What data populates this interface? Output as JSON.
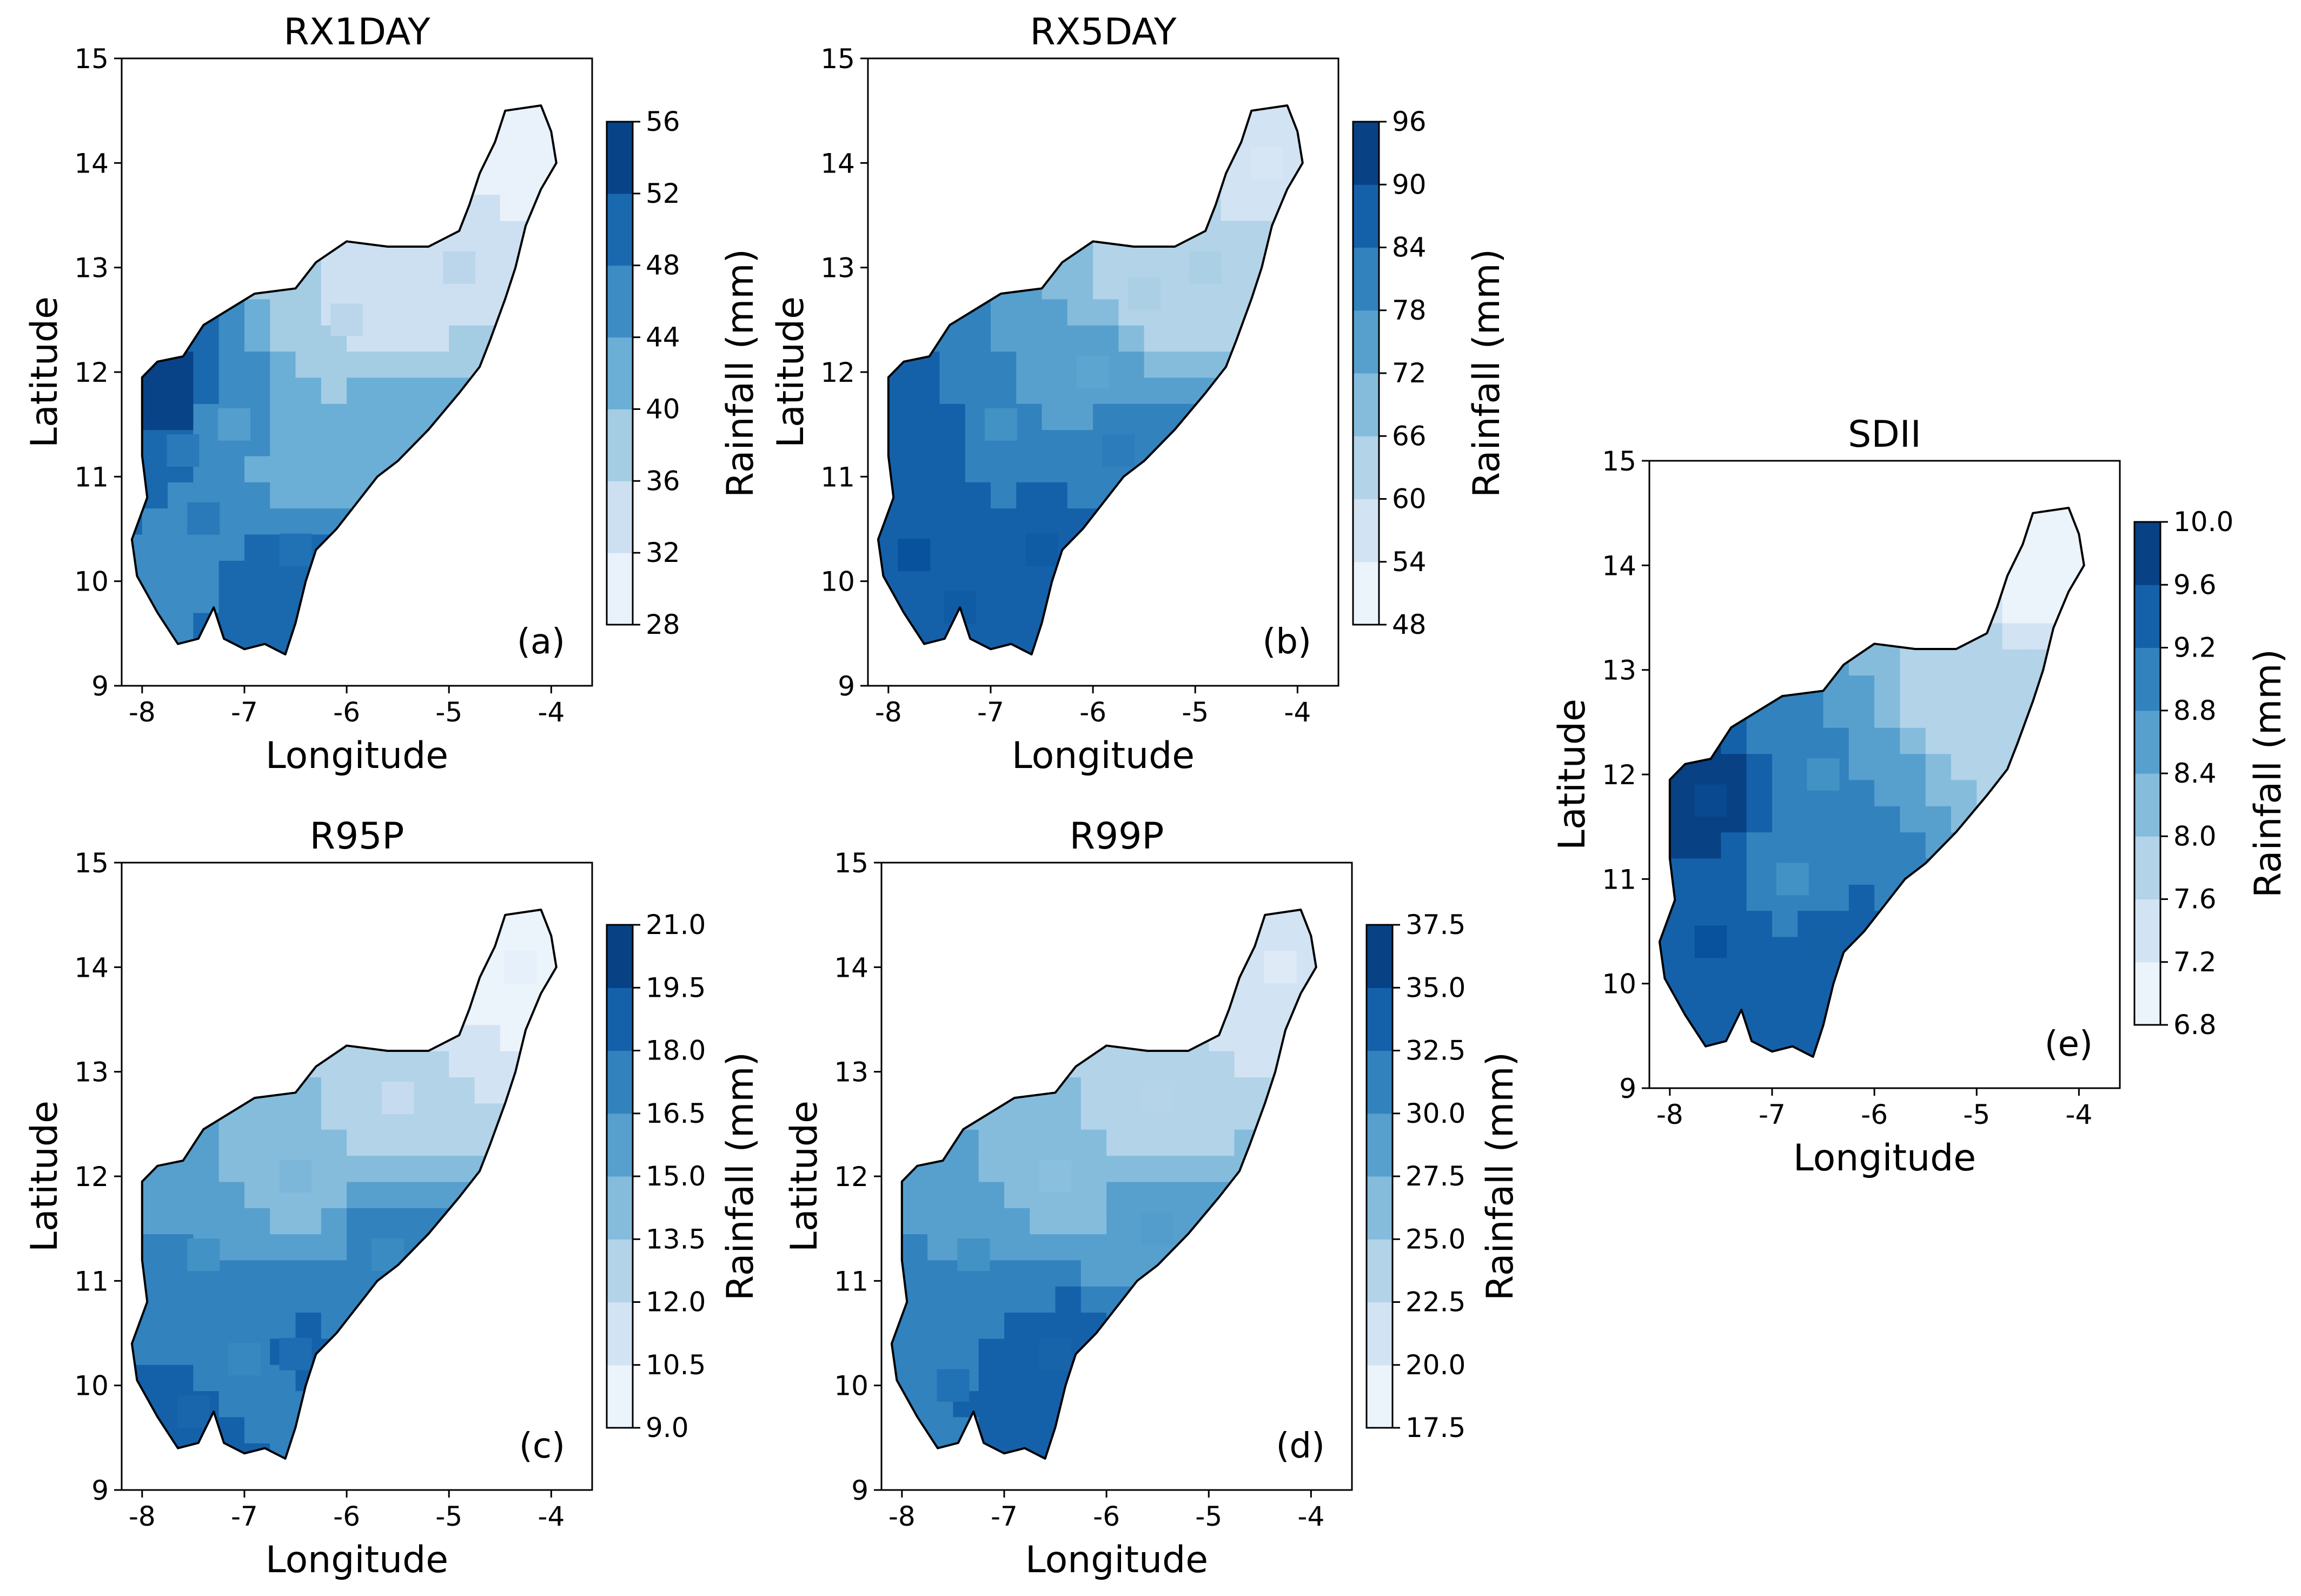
{
  "figure": {
    "colormap": "Blues"
  },
  "chart_data": [
    {
      "type": "heatmap",
      "panel": "(a)",
      "title": "RX1DAY",
      "xlabel": "Longitude",
      "ylabel": "Latitude",
      "xticks": [
        -8,
        -7,
        -6,
        -5,
        -4
      ],
      "yticks": [
        9,
        10,
        11,
        12,
        13,
        14,
        15
      ],
      "xlim": [
        -8.2,
        -3.6
      ],
      "ylim": [
        9,
        15
      ],
      "colorbar": {
        "label": "Rainfall (mm)",
        "min": 28,
        "max": 56,
        "ticks": [
          "28",
          "32",
          "36",
          "40",
          "44",
          "48",
          "52",
          "56"
        ]
      },
      "cells": [
        {
          "lon": -7.75,
          "lat": 11.75,
          "value": 54
        },
        {
          "lon": -7.6,
          "lat": 11.25,
          "value": 48
        },
        {
          "lon": -7.4,
          "lat": 10.6,
          "value": 48
        },
        {
          "lon": -6.5,
          "lat": 10.3,
          "value": 49
        },
        {
          "lon": -6.3,
          "lat": 9.75,
          "value": 49
        },
        {
          "lon": -7.1,
          "lat": 11.5,
          "value": 44
        },
        {
          "lon": -6.5,
          "lat": 11.0,
          "value": 42
        },
        {
          "lon": -5.5,
          "lat": 11.5,
          "value": 42
        },
        {
          "lon": -6.0,
          "lat": 12.5,
          "value": 36
        },
        {
          "lon": -5.5,
          "lat": 12.75,
          "value": 34
        },
        {
          "lon": -4.9,
          "lat": 13.0,
          "value": 36
        },
        {
          "lon": -4.3,
          "lat": 14.0,
          "value": 30
        }
      ]
    },
    {
      "type": "heatmap",
      "panel": "(b)",
      "title": "RX5DAY",
      "xlabel": "Longitude",
      "ylabel": "Latitude",
      "xticks": [
        -8,
        -7,
        -6,
        -5,
        -4
      ],
      "yticks": [
        9,
        10,
        11,
        12,
        13,
        14,
        15
      ],
      "xlim": [
        -8.2,
        -3.6
      ],
      "ylim": [
        9,
        15
      ],
      "colorbar": {
        "label": "Rainfall (mm)",
        "min": 48,
        "max": 96,
        "ticks": [
          "48",
          "54",
          "60",
          "66",
          "72",
          "78",
          "84",
          "90",
          "96"
        ]
      },
      "cells": [
        {
          "lon": -7.75,
          "lat": 11.5,
          "value": 87
        },
        {
          "lon": -7.75,
          "lat": 10.25,
          "value": 90
        },
        {
          "lon": -7.3,
          "lat": 9.75,
          "value": 88
        },
        {
          "lon": -6.5,
          "lat": 10.3,
          "value": 88
        },
        {
          "lon": -5.75,
          "lat": 11.25,
          "value": 82
        },
        {
          "lon": -6.9,
          "lat": 11.5,
          "value": 78
        },
        {
          "lon": -6.0,
          "lat": 12.0,
          "value": 74
        },
        {
          "lon": -5.5,
          "lat": 12.75,
          "value": 64
        },
        {
          "lon": -4.9,
          "lat": 13.0,
          "value": 64
        },
        {
          "lon": -4.3,
          "lat": 14.0,
          "value": 56
        }
      ]
    },
    {
      "type": "heatmap",
      "panel": "(c)",
      "title": "R95P",
      "xlabel": "Longitude",
      "ylabel": "Latitude",
      "xticks": [
        -8,
        -7,
        -6,
        -5,
        -4
      ],
      "yticks": [
        9,
        10,
        11,
        12,
        13,
        14,
        15
      ],
      "xlim": [
        -8.2,
        -3.6
      ],
      "ylim": [
        9,
        15
      ],
      "colorbar": {
        "label": "Rainfall (mm)",
        "min": 9.0,
        "max": 21.0,
        "ticks": [
          "9.0",
          "10.5",
          "12.0",
          "13.5",
          "15.0",
          "16.5",
          "18.0",
          "19.5",
          "21.0"
        ]
      },
      "cells": [
        {
          "lon": -7.5,
          "lat": 9.75,
          "value": 18.5
        },
        {
          "lon": -7.0,
          "lat": 10.25,
          "value": 17.0
        },
        {
          "lon": -6.5,
          "lat": 10.3,
          "value": 18.2
        },
        {
          "lon": -5.6,
          "lat": 11.25,
          "value": 16.8
        },
        {
          "lon": -7.4,
          "lat": 11.25,
          "value": 16.5
        },
        {
          "lon": -6.5,
          "lat": 12.0,
          "value": 14.5
        },
        {
          "lon": -5.5,
          "lat": 12.75,
          "value": 12.0
        },
        {
          "lon": -4.3,
          "lat": 14.0,
          "value": 10.0
        }
      ]
    },
    {
      "type": "heatmap",
      "panel": "(d)",
      "title": "R99P",
      "xlabel": "Longitude",
      "ylabel": "Latitude",
      "xticks": [
        -8,
        -7,
        -6,
        -5,
        -4
      ],
      "yticks": [
        9,
        10,
        11,
        12,
        13,
        14,
        15
      ],
      "xlim": [
        -8.2,
        -3.6
      ],
      "ylim": [
        9,
        15
      ],
      "colorbar": {
        "label": "Rainfall (mm)",
        "min": 17.5,
        "max": 37.5,
        "ticks": [
          "17.5",
          "20.0",
          "22.5",
          "25.0",
          "27.5",
          "30.0",
          "32.5",
          "35.0",
          "37.5"
        ]
      },
      "cells": [
        {
          "lon": -7.5,
          "lat": 10.0,
          "value": 32.5
        },
        {
          "lon": -6.5,
          "lat": 10.3,
          "value": 33.5
        },
        {
          "lon": -7.3,
          "lat": 11.25,
          "value": 30.0
        },
        {
          "lon": -5.5,
          "lat": 11.5,
          "value": 29.0
        },
        {
          "lon": -6.5,
          "lat": 12.0,
          "value": 26.0
        },
        {
          "lon": -5.5,
          "lat": 12.75,
          "value": 23.5
        },
        {
          "lon": -4.3,
          "lat": 14.0,
          "value": 20.0
        }
      ]
    },
    {
      "type": "heatmap",
      "panel": "(e)",
      "title": "SDII",
      "xlabel": "Longitude",
      "ylabel": "Latitude",
      "xticks": [
        -8,
        -7,
        -6,
        -5,
        -4
      ],
      "yticks": [
        9,
        10,
        11,
        12,
        13,
        14,
        15
      ],
      "xlim": [
        -8.2,
        -3.6
      ],
      "ylim": [
        9,
        15
      ],
      "colorbar": {
        "label": "Rainfall (mm)",
        "min": 6.8,
        "max": 10.0,
        "ticks": [
          "6.8",
          "7.2",
          "7.6",
          "8.0",
          "8.4",
          "8.8",
          "9.2",
          "9.6",
          "10.0"
        ]
      },
      "cells": [
        {
          "lon": -7.6,
          "lat": 11.75,
          "value": 9.7
        },
        {
          "lon": -7.6,
          "lat": 10.4,
          "value": 9.6
        },
        {
          "lon": -6.5,
          "lat": 10.4,
          "value": 9.4
        },
        {
          "lon": -6.8,
          "lat": 11.0,
          "value": 8.8
        },
        {
          "lon": -6.5,
          "lat": 12.0,
          "value": 8.8
        },
        {
          "lon": -5.0,
          "lat": 12.75,
          "value": 7.8
        },
        {
          "lon": -4.3,
          "lat": 14.0,
          "value": 7.0
        }
      ]
    }
  ]
}
